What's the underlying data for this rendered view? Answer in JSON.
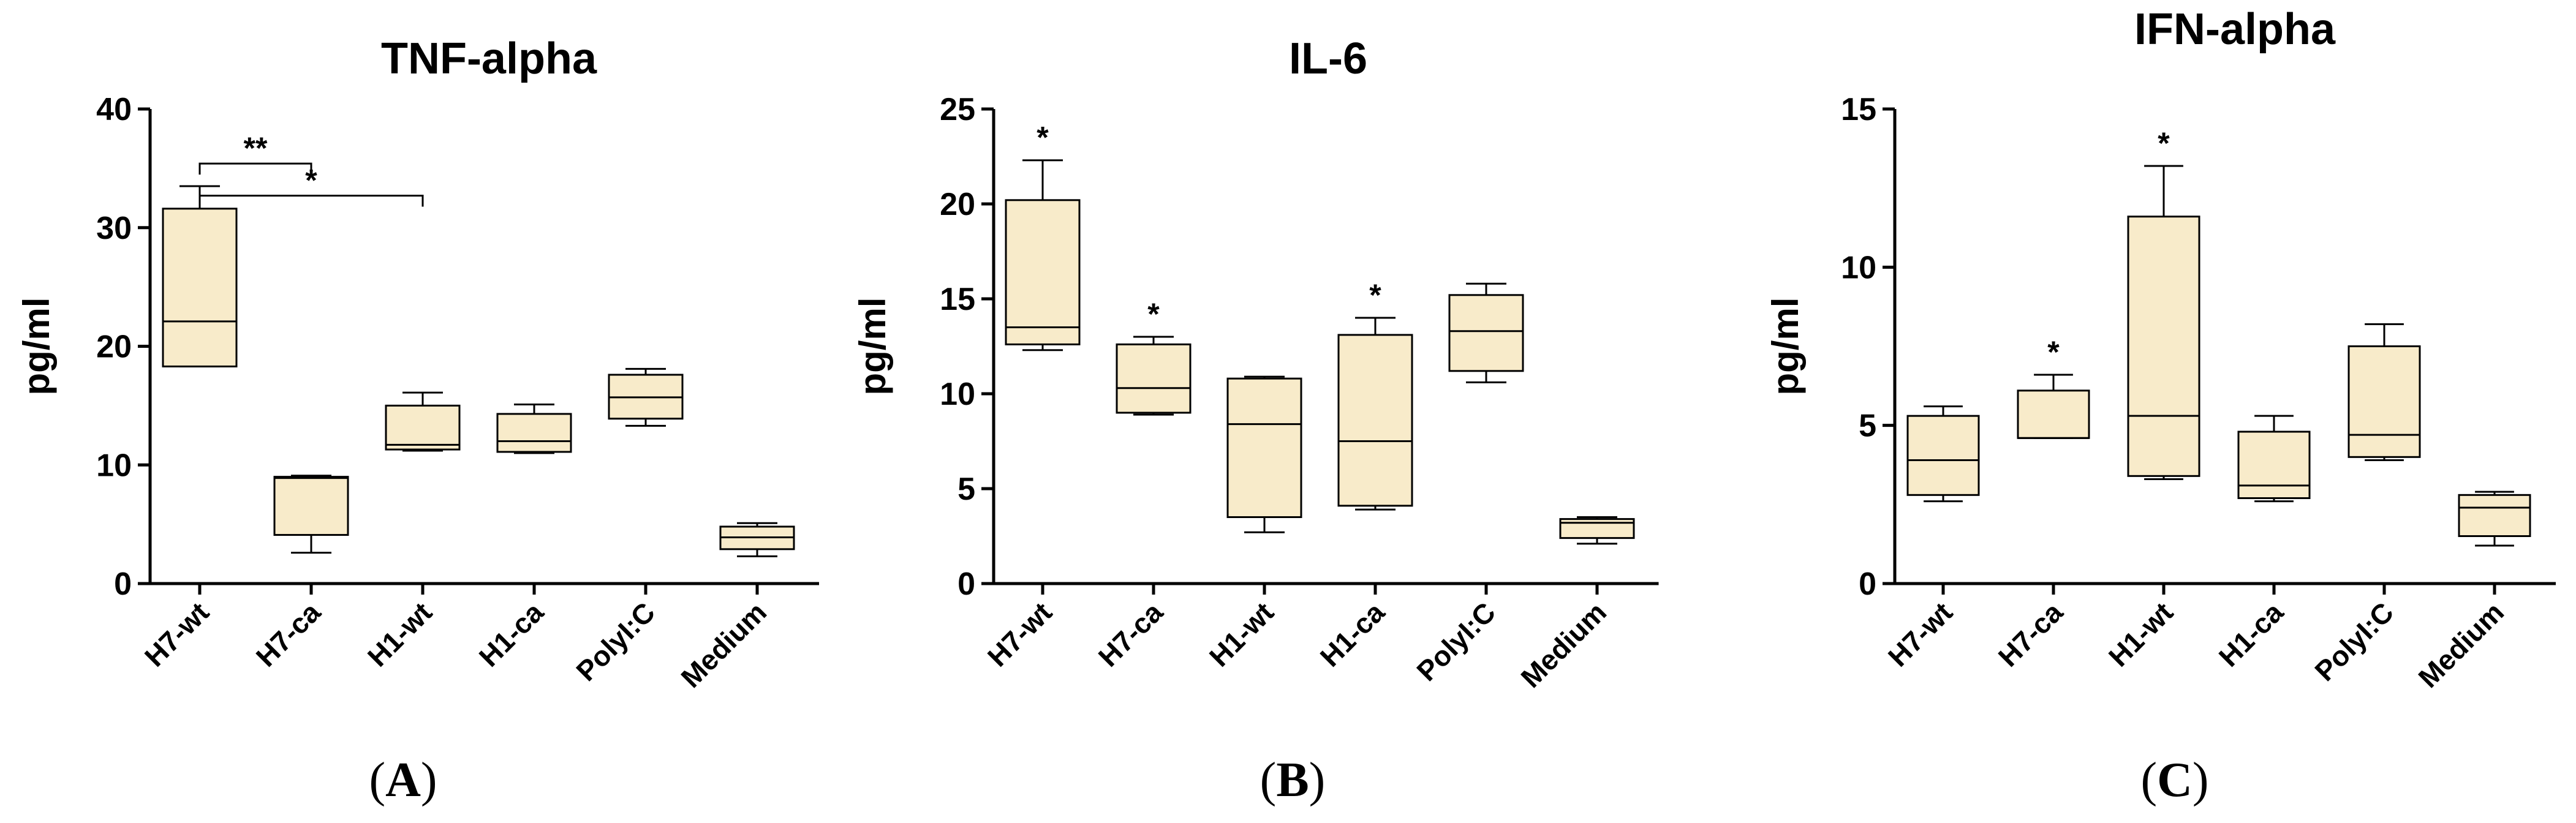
{
  "chart_data": [
    {
      "type": "boxplot",
      "panel": "A",
      "title": "TNF-alpha",
      "ylabel": "pg/ml",
      "ylim": [
        0,
        40
      ],
      "yticks": [
        0,
        10,
        20,
        30,
        40
      ],
      "categories": [
        "H7-wt",
        "H7-ca",
        "H1-wt",
        "H1-ca",
        "PolyI:C",
        "Medium"
      ],
      "boxes": [
        {
          "min": 18.3,
          "q1": 18.3,
          "median": 22.1,
          "q3": 31.6,
          "max": 33.5,
          "mark": ""
        },
        {
          "min": 2.6,
          "q1": 4.1,
          "median": 8.9,
          "q3": 9.0,
          "max": 9.1,
          "mark": ""
        },
        {
          "min": 11.2,
          "q1": 11.3,
          "median": 11.7,
          "q3": 15.0,
          "max": 16.1,
          "mark": ""
        },
        {
          "min": 11.0,
          "q1": 11.1,
          "median": 12.0,
          "q3": 14.3,
          "max": 15.1,
          "mark": ""
        },
        {
          "min": 13.3,
          "q1": 13.9,
          "median": 15.7,
          "q3": 17.6,
          "max": 18.1,
          "mark": ""
        },
        {
          "min": 2.3,
          "q1": 2.9,
          "median": 3.9,
          "q3": 4.8,
          "max": 5.1,
          "mark": ""
        }
      ],
      "brackets": [
        {
          "from": 0,
          "to": 1,
          "y": 35.4,
          "label": "**"
        },
        {
          "from": 0,
          "to": 2,
          "y": 32.7,
          "label": "*"
        }
      ],
      "panel_label": "A"
    },
    {
      "type": "boxplot",
      "panel": "B",
      "title": "IL-6",
      "ylabel": "pg/ml",
      "ylim": [
        0,
        25
      ],
      "yticks": [
        0,
        5,
        10,
        15,
        20,
        25
      ],
      "categories": [
        "H7-wt",
        "H7-ca",
        "H1-wt",
        "H1-ca",
        "PolyI:C",
        "Medium"
      ],
      "boxes": [
        {
          "min": 12.3,
          "q1": 12.6,
          "median": 13.5,
          "q3": 20.2,
          "max": 22.3,
          "mark": "*"
        },
        {
          "min": 8.9,
          "q1": 9.0,
          "median": 10.3,
          "q3": 12.6,
          "max": 13.0,
          "mark": "*"
        },
        {
          "min": 2.7,
          "q1": 3.5,
          "median": 8.4,
          "q3": 10.8,
          "max": 10.9,
          "mark": ""
        },
        {
          "min": 3.9,
          "q1": 4.1,
          "median": 7.5,
          "q3": 13.1,
          "max": 14.0,
          "mark": "*"
        },
        {
          "min": 10.6,
          "q1": 11.2,
          "median": 13.3,
          "q3": 15.2,
          "max": 15.8,
          "mark": ""
        },
        {
          "min": 2.1,
          "q1": 2.4,
          "median": 3.2,
          "q3": 3.4,
          "max": 3.5,
          "mark": ""
        }
      ],
      "brackets": [],
      "panel_label": "B"
    },
    {
      "type": "boxplot",
      "panel": "C",
      "title": "IFN-alpha",
      "ylabel": "pg/ml",
      "ylim": [
        0,
        15
      ],
      "yticks": [
        0,
        5,
        10,
        15
      ],
      "categories": [
        "H7-wt",
        "H7-ca",
        "H1-wt",
        "H1-ca",
        "PolyI:C",
        "Medium"
      ],
      "boxes": [
        {
          "min": 2.6,
          "q1": 2.8,
          "median": 3.9,
          "q3": 5.3,
          "max": 5.6,
          "mark": ""
        },
        {
          "min": 4.6,
          "q1": 4.6,
          "median": 4.6,
          "q3": 6.1,
          "max": 6.6,
          "mark": "*"
        },
        {
          "min": 3.3,
          "q1": 3.4,
          "median": 5.3,
          "q3": 11.6,
          "max": 13.2,
          "mark": "*"
        },
        {
          "min": 2.6,
          "q1": 2.7,
          "median": 3.1,
          "q3": 4.8,
          "max": 5.3,
          "mark": ""
        },
        {
          "min": 3.9,
          "q1": 4.0,
          "median": 4.7,
          "q3": 7.5,
          "max": 8.2,
          "mark": ""
        },
        {
          "min": 1.2,
          "q1": 1.5,
          "median": 2.4,
          "q3": 2.8,
          "max": 2.9,
          "mark": ""
        }
      ],
      "brackets": [],
      "panel_label": "C"
    }
  ],
  "colors": {
    "box_fill": "#f8ebca",
    "stroke": "#000000"
  }
}
